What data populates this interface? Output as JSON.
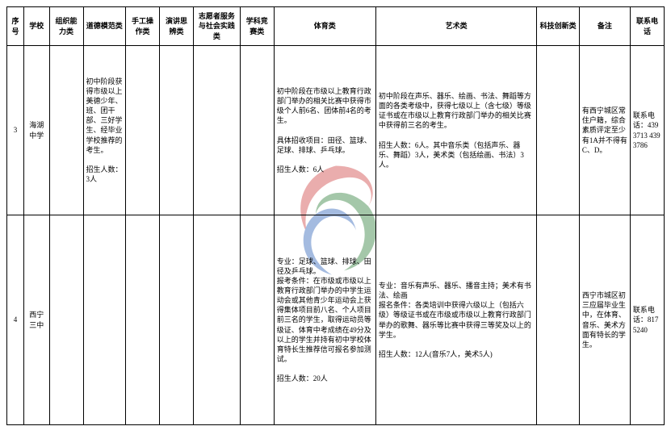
{
  "watermark": {
    "swirl1_color": "#d96b6b",
    "swirl2_color": "#5b9b63",
    "swirl3_color": "#5b84c7",
    "size": 200
  },
  "table": {
    "border_color": "#000000",
    "header_font_size": 9,
    "body_font_size": 9
  },
  "headers": {
    "seq": "序号",
    "school": "学校",
    "org": "组织能力类",
    "moral": "道德模范类",
    "craft": "手工操作类",
    "speech": "演讲思辨类",
    "volun": "志愿者服务与社会实践类",
    "subj": "学科竞赛类",
    "sport": "体育类",
    "art": "艺术类",
    "sci": "科技创新类",
    "note": "备注",
    "phone": "联系电话"
  },
  "rows": [
    {
      "seq": "3",
      "school": "海湖中学",
      "org": "",
      "moral": "初中阶段获得市级以上美德少年、班、团干部、三好学生、经毕业学校推荐的考生。\n\n招生人数：3人",
      "craft": "",
      "speech": "",
      "volun": "",
      "subj": "",
      "sport": "初中阶段在市级以上教育行政部门举办的相关比赛中获得市级个人前6名、团体前4名的考生。\n\n具体招收项目：田径、篮球、足球、排球、乒乓球。\n\n招生人数：6人",
      "art": "初中阶段在声乐、器乐、绘画、书法、舞蹈等方面的各类考级中，获得七级以上（含七级）等级证书或在市级以上教育行政部门举办的相关比赛中获得前三名的考生。\n\n招生人数：6人。其中音乐类（包括声乐、器乐、舞蹈）3人，美术类（包括绘画、书法）3人。",
      "sci": "",
      "note": "有西宁城区常住户籍，综合素质评定至少有1A并不得有C、D。",
      "phone": "联系电话：4393713 4393786"
    },
    {
      "seq": "4",
      "school": "西宁三中",
      "org": "",
      "moral": "",
      "craft": "",
      "speech": "",
      "volun": "",
      "subj": "",
      "sport": "专业：足球、篮球、排球、田径及乒乓球。\n报考条件：在市级或市级以上教育行政部门举办的中学生运动会或其他青少年运动会上获得集体项目前八名、个人项目前三名的学生，取得运动员等级证、体育中考成绩在49分及以上的学生并持有初中学校体育特长生推荐信可报名参加测试。\n\n招生人数：20人",
      "art": "专业：音乐有声乐、器乐、播音主持；美术有书法、绘画\n报名条件：各类培训中获得六级以上（包括六级）等级证书或在市级或市级以上教育行政部门举办的歌舞、器乐等比赛中获得三等奖及以上的学生。\n\n招生人数：12人(音乐7人，美术5人)",
      "sci": "",
      "note": "西宁市城区初三应届毕业生中，在体育、音乐、美术方面有特长的学生。",
      "phone": "联系电话：8175240"
    }
  ]
}
